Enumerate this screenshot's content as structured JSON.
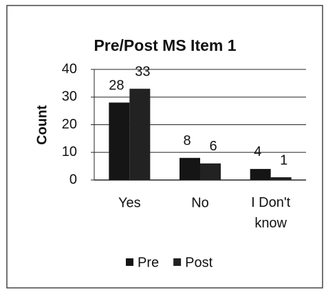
{
  "chart_data": {
    "type": "bar",
    "title": "Pre/Post MS Item 1",
    "y_label": "Count",
    "categories": [
      "Yes",
      "No",
      "I Don't know"
    ],
    "series": [
      {
        "name": "Pre",
        "color": "#151515",
        "values": [
          28,
          8,
          4
        ]
      },
      {
        "name": "Post",
        "color": "#222222",
        "values": [
          33,
          6,
          1
        ]
      }
    ],
    "ylim": [
      0,
      40
    ],
    "yticks": [
      0,
      10,
      20,
      30,
      40
    ],
    "grid": true,
    "legend": "bottom"
  }
}
